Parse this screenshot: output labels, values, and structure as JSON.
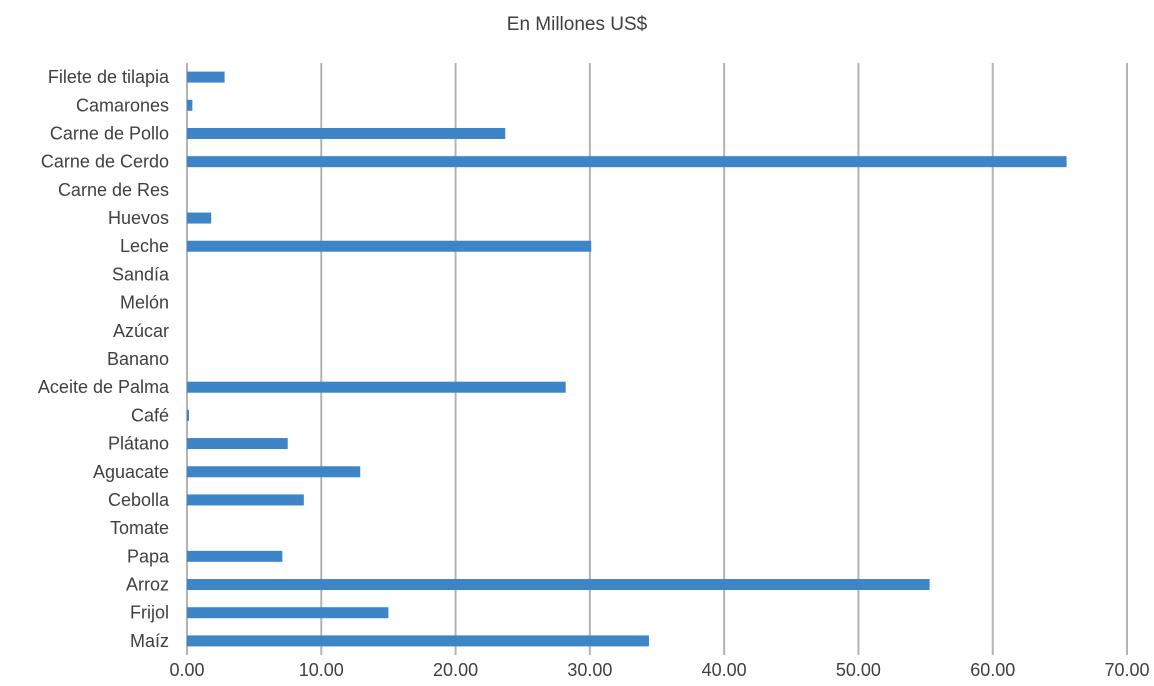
{
  "chart_data": {
    "type": "bar",
    "orientation": "horizontal",
    "title": "En Millones US$",
    "xlabel": "",
    "ylabel": "",
    "categories": [
      "Maíz",
      "Frijol",
      "Arroz",
      "Papa",
      "Tomate",
      "Cebolla",
      "Aguacate",
      "Plátano",
      "Café",
      "Aceite de Palma",
      "Banano",
      "Azúcar",
      "Melón",
      "Sandía",
      "Leche",
      "Huevos",
      "Carne de Res",
      "Carne de Cerdo",
      "Carne de Pollo",
      "Camarones",
      "Filete de tilapia"
    ],
    "values": [
      34.4,
      15.0,
      55.3,
      7.1,
      0.0,
      8.7,
      12.9,
      7.5,
      0.15,
      28.2,
      0.0,
      0.0,
      0.0,
      0.0,
      30.1,
      1.8,
      0.0,
      65.5,
      23.7,
      0.4,
      2.8
    ],
    "xlim": [
      0,
      70
    ],
    "xticks": [
      "0.00",
      "10.00",
      "20.00",
      "30.00",
      "40.00",
      "50.00",
      "60.00",
      "70.00"
    ],
    "grid": true,
    "bar_color": "#3d85c6",
    "grid_color": "#b3b3b3",
    "legend": "none"
  }
}
